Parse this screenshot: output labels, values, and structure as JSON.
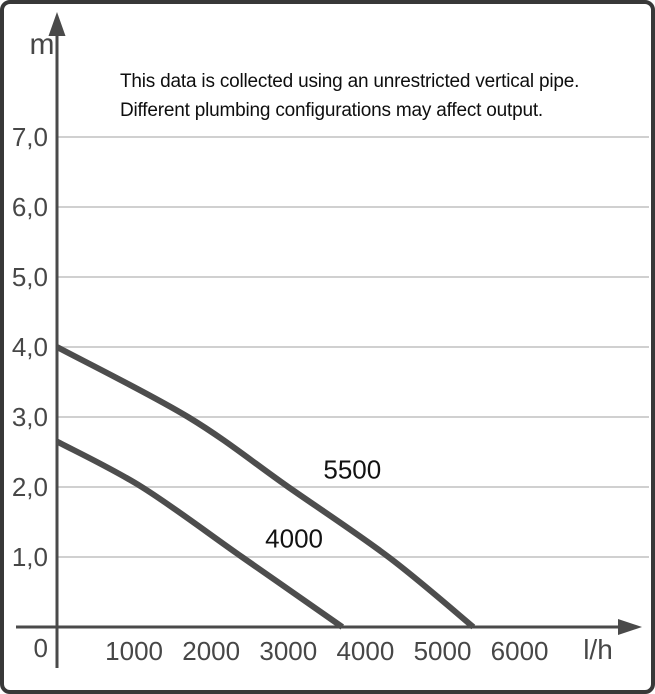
{
  "figure": {
    "annotation_line1": "This data is collected using an unrestricted vertical pipe.",
    "annotation_line2": "Different plumbing configurations may affect output.",
    "y_axis_unit": "m",
    "x_axis_unit": "l/h",
    "origin_label": "0"
  },
  "colors": {
    "curve": "#4d4d4d",
    "axis": "#4a4a4a",
    "gridline": "#c9c9c9",
    "frame_border": "#383838",
    "tick_text": "#474747",
    "annotation_text": "#0e0e0e"
  },
  "chart_data": {
    "type": "line",
    "title": "",
    "xlabel": "l/h",
    "ylabel": "m",
    "xlim": [
      0,
      7600
    ],
    "ylim": [
      0,
      8.5
    ],
    "grid": "horizontal-only",
    "legend_position": "inline-labels",
    "x_ticks": [
      {
        "value": 1000,
        "label": "1000"
      },
      {
        "value": 2000,
        "label": "2000"
      },
      {
        "value": 3000,
        "label": "3000"
      },
      {
        "value": 4000,
        "label": "4000"
      },
      {
        "value": 5000,
        "label": "5000"
      },
      {
        "value": 6000,
        "label": "6000"
      }
    ],
    "y_ticks": [
      {
        "value": 1,
        "label": "1,0"
      },
      {
        "value": 2,
        "label": "2,0"
      },
      {
        "value": 3,
        "label": "3,0"
      },
      {
        "value": 4,
        "label": "4,0"
      },
      {
        "value": 5,
        "label": "5,0"
      },
      {
        "value": 6,
        "label": "6,0"
      },
      {
        "value": 7,
        "label": "7,0"
      }
    ],
    "series": [
      {
        "name": "5500",
        "points": [
          [
            0,
            4.0
          ],
          [
            1700,
            3.0
          ],
          [
            3000,
            2.0
          ],
          [
            4300,
            1.0
          ],
          [
            5400,
            0
          ]
        ],
        "label_at": {
          "flow_lh": 3830,
          "head_m": 2.24
        }
      },
      {
        "name": "4000",
        "points": [
          [
            0,
            2.65
          ],
          [
            1100,
            2.0
          ],
          [
            2400,
            1.0
          ],
          [
            3700,
            0
          ]
        ],
        "label_at": {
          "flow_lh": 3075,
          "head_m": 1.26
        }
      }
    ]
  }
}
